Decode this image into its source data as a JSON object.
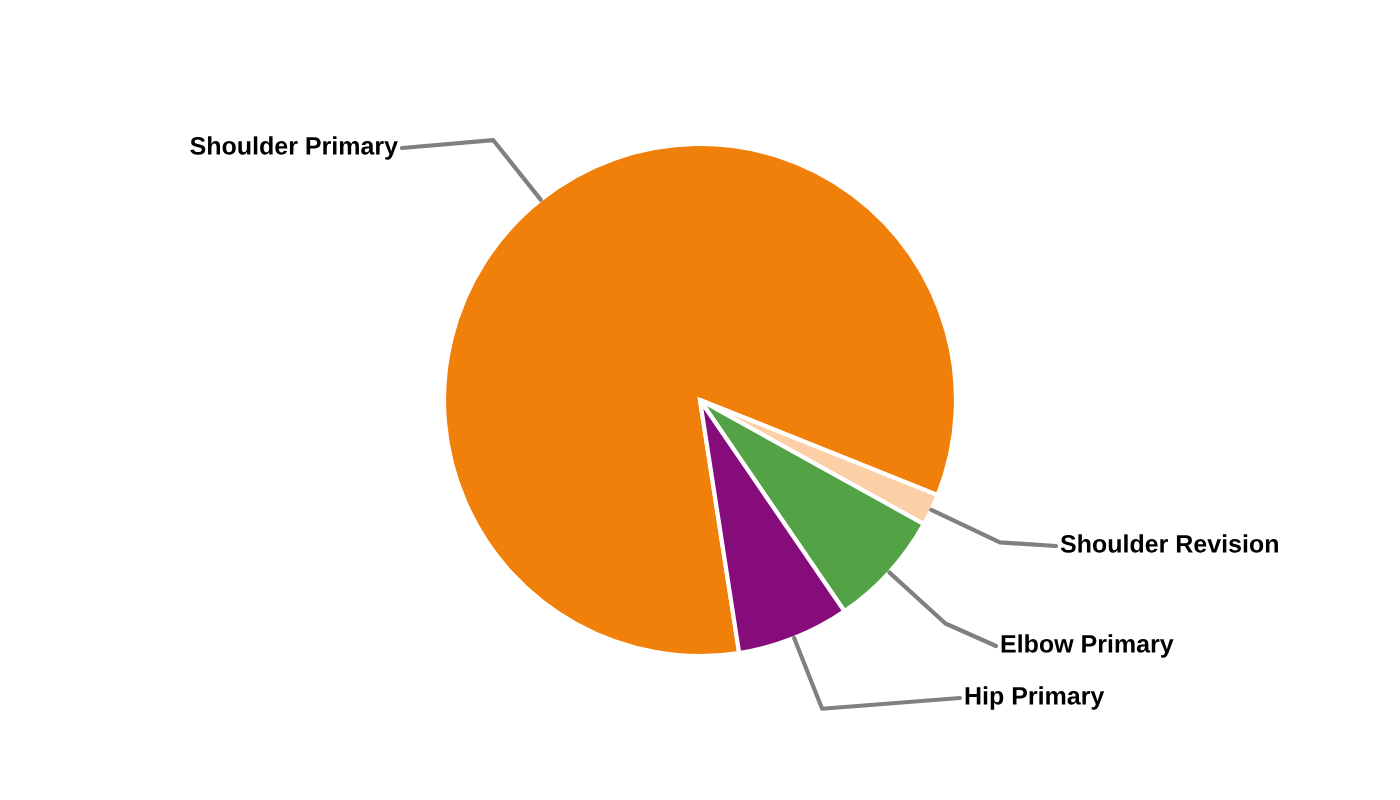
{
  "chart_data": {
    "type": "pie",
    "categories": [
      "Shoulder Primary",
      "Shoulder Revision",
      "Elbow Primary",
      "Hip Primary"
    ],
    "values": [
      83.5,
      2.0,
      7.4,
      7.1
    ],
    "colors": [
      "#f0800a",
      "#fccfa6",
      "#53a245",
      "#870c7b"
    ]
  }
}
